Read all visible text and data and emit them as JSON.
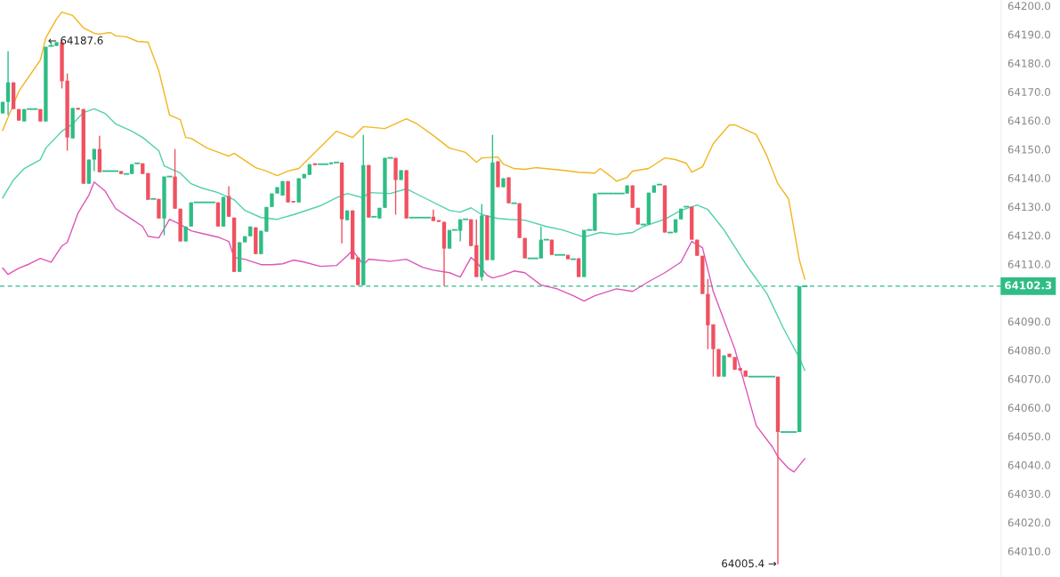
{
  "chart_data": {
    "type": "candlestick",
    "categories": [
      null,
      null,
      null,
      null,
      null,
      null,
      null,
      null,
      null,
      null,
      null,
      null,
      null,
      null,
      null,
      null,
      null,
      null,
      null,
      null,
      null,
      null,
      null,
      null,
      null,
      null,
      null,
      null,
      null,
      null,
      null,
      null,
      null,
      null,
      null,
      null,
      null,
      null,
      null,
      null,
      null,
      null,
      null,
      null,
      null,
      null,
      null,
      null,
      null,
      null,
      null,
      null,
      null,
      null,
      null,
      null,
      null,
      null,
      null,
      null,
      null,
      null,
      null,
      null,
      null,
      null,
      null,
      null,
      null,
      null,
      null,
      null,
      null,
      null,
      null,
      null,
      null,
      null,
      null,
      null,
      null,
      null,
      null,
      null,
      null,
      null,
      null,
      null,
      null,
      null,
      null,
      null,
      null,
      null,
      null,
      null,
      null,
      null,
      null,
      null,
      null,
      null,
      null,
      null,
      null,
      null,
      null,
      null,
      null,
      null,
      null,
      null,
      null,
      null,
      null,
      null,
      null,
      null,
      null,
      null,
      null,
      null,
      null,
      null,
      null,
      null,
      null,
      null,
      null,
      null,
      null,
      null,
      null,
      null,
      null,
      null,
      null,
      null,
      null,
      null,
      null,
      null,
      null,
      null,
      null,
      null,
      null,
      null,
      null,
      null,
      null,
      null,
      null,
      null,
      null,
      null,
      null,
      null,
      null,
      null,
      null,
      null,
      null,
      null,
      null,
      null,
      null,
      null,
      null,
      null,
      null,
      null,
      null,
      null,
      null,
      null,
      null,
      null,
      null,
      null,
      null,
      null,
      null,
      null,
      null,
      null
    ],
    "ohlc": [
      [
        64162.5,
        64166.5,
        64162.5,
        64166.5
      ],
      [
        64166.5,
        64184.2,
        64161.9,
        64173.3
      ],
      [
        64173.3,
        64173.3,
        64164.0,
        64164.0
      ],
      [
        64164.0,
        64164.0,
        64160.0,
        64160.0
      ],
      [
        64159.7,
        64164.0,
        64159.7,
        64164.0
      ],
      [
        64164.0,
        64164.0,
        64164.0,
        64164.0
      ],
      [
        64164.0,
        64164.0,
        64164.0,
        64164.0
      ],
      [
        64164.0,
        64164.0,
        64159.7,
        64159.7
      ],
      [
        64159.7,
        64185.7,
        64159.7,
        64185.7
      ],
      [
        64186.0,
        64187.6,
        64186.0,
        64186.0
      ],
      [
        64186.0,
        64187.3,
        64186.0,
        64187.3
      ],
      [
        64187.3,
        64187.3,
        64171.2,
        64173.7
      ],
      [
        64173.9,
        64176.4,
        64149.5,
        64154.1
      ],
      [
        64153.8,
        64164.4,
        64153.8,
        64164.4
      ],
      [
        64164.4,
        64164.4,
        64163.8,
        64163.8
      ],
      [
        64164.0,
        64164.0,
        64138.0,
        64138.0
      ],
      [
        64138.0,
        64146.4,
        64138.0,
        64146.4
      ],
      [
        64146.4,
        64150.1,
        64142.4,
        64150.1
      ],
      [
        64150.1,
        64154.7,
        64142.0,
        64142.0
      ],
      [
        64142.4,
        64142.4,
        64142.4,
        64142.4
      ],
      [
        64142.4,
        64142.4,
        64142.4,
        64142.4
      ],
      [
        64142.4,
        64142.4,
        64142.4,
        64142.4
      ],
      [
        64142.4,
        64142.4,
        64141.4,
        64141.4
      ],
      [
        64141.4,
        64141.4,
        64141.4,
        64141.4
      ],
      [
        64141.4,
        64144.8,
        64141.4,
        64144.8
      ],
      [
        64145.1,
        64145.1,
        64145.1,
        64145.1
      ],
      [
        64145.1,
        64145.1,
        64141.4,
        64141.4
      ],
      [
        64141.7,
        64141.7,
        64132.4,
        64132.4
      ],
      [
        64132.7,
        64132.7,
        64132.7,
        64132.7
      ],
      [
        64132.7,
        64132.7,
        64125.9,
        64125.9
      ],
      [
        64125.9,
        64140.5,
        64120.0,
        64140.5
      ],
      [
        64140.5,
        64140.5,
        64140.5,
        64140.5
      ],
      [
        64140.5,
        64150.1,
        64129.3,
        64129.3
      ],
      [
        64129.3,
        64129.3,
        64117.9,
        64117.9
      ],
      [
        64117.9,
        64123.1,
        64117.9,
        64123.1
      ],
      [
        64123.1,
        64131.5,
        64123.1,
        64131.5
      ],
      [
        64131.5,
        64131.5,
        64131.5,
        64131.5
      ],
      [
        64131.5,
        64131.5,
        64131.5,
        64131.5
      ],
      [
        64131.5,
        64131.5,
        64131.5,
        64131.5
      ],
      [
        64131.5,
        64131.5,
        64131.5,
        64131.5
      ],
      [
        64131.5,
        64131.5,
        64123.1,
        64123.1
      ],
      [
        64123.1,
        64133.4,
        64123.1,
        64133.4
      ],
      [
        64133.7,
        64137.1,
        64126.5,
        64126.5
      ],
      [
        64126.2,
        64126.2,
        64107.3,
        64107.3
      ],
      [
        64107.3,
        64117.6,
        64107.3,
        64117.6
      ],
      [
        64117.6,
        64119.7,
        64117.6,
        64119.7
      ],
      [
        64119.7,
        64123.1,
        64119.7,
        64123.1
      ],
      [
        64122.8,
        64122.8,
        64113.5,
        64113.5
      ],
      [
        64113.5,
        64121.6,
        64113.5,
        64121.6
      ],
      [
        64121.3,
        64129.9,
        64121.3,
        64129.9
      ],
      [
        64129.9,
        64134.6,
        64129.9,
        64134.6
      ],
      [
        64134.6,
        64136.8,
        64134.6,
        64136.8
      ],
      [
        64133.9,
        64138.9,
        64133.9,
        64138.9
      ],
      [
        64138.9,
        64138.9,
        64131.5,
        64131.5
      ],
      [
        64132.0,
        64132.0,
        64131.5,
        64131.5
      ],
      [
        64131.5,
        64139.9,
        64131.5,
        64139.9
      ],
      [
        64139.9,
        64141.4,
        64139.9,
        64141.4
      ],
      [
        64141.1,
        64144.8,
        64141.1,
        64144.8
      ],
      [
        64145.1,
        64145.1,
        64144.5,
        64144.5
      ],
      [
        64144.8,
        64144.8,
        64144.8,
        64144.8
      ],
      [
        64144.8,
        64144.8,
        64144.8,
        64144.8
      ],
      [
        64144.8,
        64145.4,
        64144.8,
        64145.4
      ],
      [
        64145.4,
        64145.4,
        64145.4,
        64145.4
      ],
      [
        64145.4,
        64145.4,
        64117.2,
        64125.6
      ],
      [
        64125.3,
        64128.7,
        64125.3,
        64128.7
      ],
      [
        64128.7,
        64128.7,
        64111.7,
        64111.7
      ],
      [
        64112.3,
        64112.3,
        64102.7,
        64102.7
      ],
      [
        64102.7,
        64155.0,
        64102.7,
        64144.5
      ],
      [
        64144.5,
        64144.5,
        64126.2,
        64126.2
      ],
      [
        64126.5,
        64126.5,
        64126.5,
        64126.5
      ],
      [
        64125.9,
        64129.6,
        64125.9,
        64129.6
      ],
      [
        64129.6,
        64147.0,
        64129.6,
        64147.0
      ],
      [
        64147.0,
        64147.0,
        64147.0,
        64147.0
      ],
      [
        64147.0,
        64147.0,
        64127.2,
        64139.3
      ],
      [
        64139.3,
        64142.7,
        64139.3,
        64142.7
      ],
      [
        64142.7,
        64142.7,
        64125.9,
        64125.9
      ],
      [
        64126.2,
        64126.2,
        64126.2,
        64126.2
      ],
      [
        64126.2,
        64126.2,
        64126.2,
        64126.2
      ],
      [
        64126.2,
        64126.2,
        64126.2,
        64126.2
      ],
      [
        64126.2,
        64126.2,
        64126.2,
        64126.2
      ],
      [
        64126.5,
        64129.0,
        64125.0,
        64125.0
      ],
      [
        64125.3,
        64125.3,
        64124.7,
        64124.7
      ],
      [
        64124.7,
        64124.7,
        64102.4,
        64115.4
      ],
      [
        64115.4,
        64121.9,
        64115.4,
        64121.9
      ],
      [
        64121.9,
        64121.9,
        64121.9,
        64121.9
      ],
      [
        64121.6,
        64125.6,
        64117.9,
        64125.6
      ],
      [
        64125.6,
        64125.6,
        64125.6,
        64125.6
      ],
      [
        64125.6,
        64125.6,
        64116.3,
        64116.3
      ],
      [
        64116.6,
        64125.6,
        64105.5,
        64105.5
      ],
      [
        64105.5,
        64130.9,
        64104.2,
        64126.9
      ],
      [
        64126.9,
        64126.9,
        64111.4,
        64111.4
      ],
      [
        64111.4,
        64155.0,
        64111.4,
        64145.4
      ],
      [
        64145.8,
        64145.8,
        64136.8,
        64136.8
      ],
      [
        64136.8,
        64139.9,
        64136.8,
        64139.9
      ],
      [
        64140.2,
        64140.2,
        64131.2,
        64131.2
      ],
      [
        64131.2,
        64131.2,
        64131.2,
        64131.2
      ],
      [
        64131.2,
        64131.2,
        64119.1,
        64119.1
      ],
      [
        64119.1,
        64119.1,
        64112.0,
        64112.0
      ],
      [
        64112.0,
        64112.0,
        64112.0,
        64112.0
      ],
      [
        64112.0,
        64112.0,
        64112.0,
        64112.0
      ],
      [
        64112.0,
        64123.1,
        64112.0,
        64118.5
      ],
      [
        64118.5,
        64118.5,
        64118.5,
        64118.5
      ],
      [
        64118.5,
        64118.5,
        64113.2,
        64113.2
      ],
      [
        64113.2,
        64113.2,
        64113.2,
        64113.2
      ],
      [
        64113.2,
        64113.2,
        64113.2,
        64113.2
      ],
      [
        64113.2,
        64113.2,
        64111.7,
        64111.7
      ],
      [
        64111.7,
        64111.7,
        64111.7,
        64111.7
      ],
      [
        64112.0,
        64112.0,
        64105.5,
        64105.5
      ],
      [
        64105.5,
        64121.9,
        64105.5,
        64121.9
      ],
      [
        64121.9,
        64121.9,
        64121.9,
        64121.9
      ],
      [
        64121.6,
        64134.6,
        64121.6,
        64134.6
      ],
      [
        64134.6,
        64134.6,
        64134.6,
        64134.6
      ],
      [
        64134.6,
        64134.6,
        64134.6,
        64134.6
      ],
      [
        64134.6,
        64134.6,
        64134.6,
        64134.6
      ],
      [
        64134.6,
        64134.6,
        64134.6,
        64134.6
      ],
      [
        64134.6,
        64134.6,
        64134.6,
        64134.6
      ],
      [
        64134.6,
        64137.4,
        64134.6,
        64137.4
      ],
      [
        64137.4,
        64137.4,
        64129.6,
        64129.6
      ],
      [
        64129.6,
        64129.6,
        64123.8,
        64123.8
      ],
      [
        64123.8,
        64123.8,
        64123.8,
        64123.8
      ],
      [
        64123.8,
        64134.9,
        64123.8,
        64134.9
      ],
      [
        64134.9,
        64137.4,
        64134.9,
        64137.4
      ],
      [
        64137.7,
        64137.7,
        64137.7,
        64137.7
      ],
      [
        64137.4,
        64137.4,
        64121.0,
        64121.0
      ],
      [
        64121.0,
        64121.0,
        64121.0,
        64121.0
      ],
      [
        64121.0,
        64125.6,
        64121.0,
        64125.6
      ],
      [
        64125.6,
        64129.3,
        64125.6,
        64129.3
      ],
      [
        64130.0,
        64130.0,
        64130.0,
        64130.0
      ],
      [
        64130.0,
        64130.0,
        64118.5,
        64118.5
      ],
      [
        64118.5,
        64118.5,
        64112.9,
        64112.9
      ],
      [
        64112.9,
        64112.9,
        64099.6,
        64099.6
      ],
      [
        64099.6,
        64104.8,
        64080.4,
        64088.7
      ],
      [
        64089.0,
        64089.0,
        64070.8,
        64080.4
      ],
      [
        64080.4,
        64080.4,
        64070.8,
        64070.8
      ],
      [
        64070.8,
        64078.2,
        64070.8,
        64078.2
      ],
      [
        64078.8,
        64078.8,
        64077.6,
        64077.6
      ],
      [
        64077.6,
        64077.6,
        64073.2,
        64073.2
      ],
      [
        64073.8,
        64073.8,
        64072.9,
        64072.9
      ],
      [
        64072.9,
        64072.9,
        64070.8,
        64070.8
      ],
      [
        64070.8,
        64070.8,
        64070.8,
        64070.8
      ],
      [
        64070.8,
        64070.8,
        64070.8,
        64070.8
      ],
      [
        64070.8,
        64070.8,
        64070.8,
        64070.8
      ],
      [
        64070.8,
        64070.8,
        64070.8,
        64070.8
      ],
      [
        64070.8,
        64070.8,
        64070.8,
        64070.8
      ],
      [
        64070.8,
        64070.8,
        64005.4,
        64051.5
      ],
      [
        64051.5,
        64051.5,
        64051.5,
        64051.5
      ],
      [
        64051.5,
        64051.5,
        64051.5,
        64051.5
      ],
      [
        64051.5,
        64051.5,
        64051.5,
        64051.5
      ],
      [
        64051.5,
        64102.3,
        64051.5,
        64102.3
      ],
      [
        64102.3,
        64102.3,
        64102.3,
        64102.3
      ],
      null,
      null,
      null,
      null,
      null,
      null,
      null,
      null,
      null,
      null,
      null,
      null,
      null,
      null,
      null,
      null,
      null,
      null,
      null,
      null,
      null,
      null,
      null,
      null,
      null,
      null,
      null,
      null,
      null,
      null,
      null,
      null,
      null,
      null,
      null,
      null
    ],
    "colors": [
      "#2ebd85",
      "#2ebd85",
      "#ef5160",
      "#ef5160",
      "#2ebd85",
      "#2ebd85",
      "#2ebd85",
      "#ef5160",
      "#2ebd85",
      "#2ebd85",
      "#2ebd85",
      "#ef5160",
      "#ef5160",
      "#2ebd85",
      "#ef5160",
      "#ef5160",
      "#2ebd85",
      "#2ebd85",
      "#ef5160",
      "#2ebd85",
      "#2ebd85",
      "#2ebd85",
      "#ef5160",
      "#2ebd85",
      "#2ebd85",
      "#2ebd85",
      "#ef5160",
      "#ef5160",
      "#2ebd85",
      "#ef5160",
      "#2ebd85",
      "#2ebd85",
      "#ef5160",
      "#ef5160",
      "#2ebd85",
      "#2ebd85",
      "#2ebd85",
      "#2ebd85",
      "#2ebd85",
      "#2ebd85",
      "#ef5160",
      "#2ebd85",
      "#ef5160",
      "#ef5160",
      "#2ebd85",
      "#2ebd85",
      "#2ebd85",
      "#ef5160",
      "#2ebd85",
      "#2ebd85",
      "#2ebd85",
      "#2ebd85",
      "#2ebd85",
      "#ef5160",
      "#ef5160",
      "#2ebd85",
      "#2ebd85",
      "#2ebd85",
      "#ef5160",
      "#2ebd85",
      "#2ebd85",
      "#2ebd85",
      "#2ebd85",
      "#ef5160",
      "#2ebd85",
      "#ef5160",
      "#ef5160",
      "#2ebd85",
      "#ef5160",
      "#2ebd85",
      "#2ebd85",
      "#2ebd85",
      "#2ebd85",
      "#ef5160",
      "#2ebd85",
      "#ef5160",
      "#2ebd85",
      "#2ebd85",
      "#2ebd85",
      "#2ebd85",
      "#ef5160",
      "#ef5160",
      "#ef5160",
      "#2ebd85",
      "#2ebd85",
      "#2ebd85",
      "#2ebd85",
      "#ef5160",
      "#ef5160",
      "#2ebd85",
      "#ef5160",
      "#2ebd85",
      "#ef5160",
      "#2ebd85",
      "#ef5160",
      "#2ebd85",
      "#ef5160",
      "#ef5160",
      "#2ebd85",
      "#2ebd85",
      "#2ebd85",
      "#2ebd85",
      "#ef5160",
      "#2ebd85",
      "#2ebd85",
      "#ef5160",
      "#2ebd85",
      "#ef5160",
      "#2ebd85",
      "#2ebd85",
      "#2ebd85",
      "#2ebd85",
      "#2ebd85",
      "#2ebd85",
      "#2ebd85",
      "#2ebd85",
      "#2ebd85",
      "#ef5160",
      "#ef5160",
      "#2ebd85",
      "#2ebd85",
      "#2ebd85",
      "#2ebd85",
      "#ef5160",
      "#2ebd85",
      "#2ebd85",
      "#2ebd85",
      "#2ebd85",
      "#ef5160",
      "#ef5160",
      "#ef5160",
      "#ef5160",
      "#ef5160",
      "#ef5160",
      "#2ebd85",
      "#ef5160",
      "#ef5160",
      "#ef5160",
      "#ef5160",
      "#2ebd85",
      "#2ebd85",
      "#2ebd85",
      "#2ebd85",
      "#2ebd85",
      "#ef5160",
      "#2ebd85",
      "#2ebd85",
      "#2ebd85",
      "#2ebd85",
      "#2ebd85",
      null,
      null,
      null,
      null,
      null,
      null,
      null,
      null,
      null,
      null,
      null,
      null,
      null,
      null,
      null,
      null,
      null,
      null,
      null,
      null,
      null,
      null,
      null,
      null,
      null,
      null,
      null,
      null,
      null,
      null,
      null,
      null,
      null,
      null,
      null,
      null
    ],
    "series": [
      {
        "type": "line",
        "color": "#f2b51f",
        "values": [
          64156.6,
          null,
          null,
          64170.2,
          null,
          null,
          null,
          64181.1,
          64188.8,
          null,
          64195.4,
          64197.8,
          null,
          64196.6,
          null,
          64192.3,
          null,
          64190.4,
          64190.1,
          null,
          64190.7,
          64189.5,
          null,
          64189.2,
          null,
          64187.6,
          null,
          64187.3,
          null,
          64177.4,
          null,
          64161.9,
          null,
          64160.3,
          64154.1,
          64153.8,
          null,
          null,
          64150.4,
          null,
          null,
          null,
          64147.6,
          64148.6,
          null,
          null,
          null,
          64143.6,
          null,
          64142.4,
          null,
          64140.8,
          null,
          64142.4,
          null,
          64143.3,
          null,
          null,
          64148.9,
          null,
          null,
          null,
          64156.3,
          null,
          null,
          64154.1,
          null,
          64157.9,
          null,
          null,
          null,
          64157.2,
          null,
          null,
          null,
          64160.6,
          null,
          64158.8,
          null,
          null,
          64154.8,
          null,
          null,
          64150.4,
          null,
          null,
          64148.9,
          null,
          64145.5,
          64147.0,
          null,
          null,
          64147.3,
          64144.8,
          null,
          64143.3,
          null,
          64143.0,
          null,
          64143.6,
          null,
          null,
          null,
          null,
          64142.7,
          null,
          null,
          64142.0,
          null,
          null,
          64141.7,
          64143.3,
          null,
          64140.5,
          64138.9,
          null,
          64140.2,
          64142.4,
          null,
          null,
          64143.3,
          null,
          64145.8,
          64147.0,
          null,
          64146.4,
          null,
          64145.1,
          64142.0,
          null,
          64143.9,
          null,
          64152.0,
          null,
          null,
          64158.5,
          64158.5,
          null,
          null,
          null,
          64155.1,
          null,
          64147.6,
          null,
          64138.0,
          null,
          64132.7,
          null,
          64111.4,
          64104.8,
          null,
          null,
          null,
          null,
          null,
          null,
          null,
          null,
          null,
          null,
          null,
          null,
          null,
          null,
          null,
          null,
          null,
          null,
          null,
          null,
          null,
          null,
          null,
          null,
          null,
          null,
          null,
          null,
          null,
          null,
          null,
          null,
          null,
          null,
          null,
          null
        ]
      },
      {
        "type": "line",
        "color": "#4fd1ad",
        "values": [
          64133.1,
          null,
          64139.3,
          null,
          64143.3,
          null,
          null,
          64146.4,
          64150.4,
          null,
          null,
          64156.3,
          null,
          64158.8,
          null,
          64162.8,
          null,
          64164.1,
          null,
          64162.5,
          null,
          64158.8,
          null,
          null,
          64156.3,
          null,
          64154.1,
          null,
          null,
          64149.5,
          64144.2,
          null,
          null,
          64141.7,
          null,
          64138.0,
          null,
          64136.5,
          null,
          null,
          64134.9,
          null,
          null,
          64132.4,
          null,
          64128.7,
          null,
          null,
          64126.2,
          null,
          null,
          64125.6,
          null,
          null,
          64127.2,
          null,
          null,
          null,
          null,
          64130.3,
          null,
          null,
          64133.1,
          null,
          64134.6,
          null,
          null,
          64133.1,
          64134.9,
          null,
          null,
          null,
          64134.6,
          null,
          null,
          64136.2,
          null,
          null,
          64133.4,
          null,
          null,
          null,
          null,
          64128.7,
          null,
          64128.1,
          null,
          64129.6,
          null,
          64127.2,
          null,
          null,
          64125.9,
          null,
          64125.6,
          null,
          null,
          64125.3,
          null,
          null,
          null,
          64123.1,
          null,
          null,
          64121.9,
          null,
          null,
          null,
          64119.4,
          null,
          null,
          64121.0,
          null,
          null,
          64120.3,
          null,
          null,
          64121.0,
          null,
          64123.1,
          null,
          null,
          null,
          64125.6,
          null,
          null,
          64128.7,
          null,
          null,
          64130.6,
          null,
          64129.0,
          null,
          null,
          64121.9,
          null,
          null,
          null,
          64110.1,
          null,
          null,
          null,
          64099.6,
          null,
          null,
          64087.8,
          null,
          null,
          64077.3,
          64073.0,
          null,
          null,
          null,
          null,
          null,
          null,
          null,
          null,
          null,
          null,
          null,
          null,
          null,
          null,
          null,
          null,
          null,
          null,
          null,
          null,
          null,
          null,
          null,
          null,
          null,
          null,
          null,
          null,
          null,
          null,
          null,
          null,
          null,
          null,
          null,
          null
        ]
      },
      {
        "type": "line",
        "color": "#dc55b8",
        "values": [
          64108.6,
          64106.4,
          null,
          64108.6,
          null,
          64110.1,
          null,
          64112.0,
          null,
          64110.7,
          null,
          64116.3,
          64117.6,
          null,
          64127.8,
          null,
          64134.0,
          64138.6,
          null,
          64135.5,
          null,
          64129.3,
          null,
          null,
          64125.6,
          null,
          64123.1,
          64119.7,
          null,
          64119.1,
          null,
          64125.6,
          null,
          64123.8,
          null,
          64121.6,
          null,
          64120.7,
          null,
          null,
          64119.4,
          null,
          64117.9,
          64112.3,
          null,
          64111.7,
          null,
          null,
          64109.8,
          null,
          64109.8,
          null,
          64110.1,
          null,
          64111.4,
          null,
          64110.7,
          null,
          null,
          64109.2,
          null,
          null,
          64109.5,
          null,
          64112.9,
          64114.8,
          null,
          64109.8,
          64111.7,
          null,
          null,
          null,
          64111.0,
          null,
          null,
          64111.7,
          null,
          null,
          64108.9,
          null,
          64107.9,
          null,
          null,
          64107.0,
          null,
          64105.5,
          null,
          64112.3,
          64110.7,
          null,
          64106.1,
          64105.2,
          null,
          64106.1,
          null,
          64107.6,
          null,
          64107.0,
          null,
          null,
          64102.7,
          null,
          null,
          64101.4,
          null,
          null,
          64099.0,
          null,
          64097.1,
          null,
          64099.0,
          null,
          null,
          null,
          64101.4,
          null,
          null,
          64100.5,
          null,
          null,
          64103.9,
          null,
          null,
          64107.0,
          null,
          null,
          64110.7,
          null,
          64117.9,
          null,
          64115.7,
          null,
          64100.5,
          null,
          null,
          null,
          64080.4,
          null,
          null,
          null,
          64053.7,
          null,
          null,
          64046.3,
          64042.9,
          null,
          64038.8,
          64037.6,
          null,
          64042.2,
          null,
          null,
          null,
          null,
          null,
          null,
          null,
          null,
          null,
          null,
          null,
          null,
          null,
          null,
          null,
          null,
          null,
          null,
          null,
          null,
          null,
          null,
          null,
          null,
          null,
          null,
          null,
          null,
          null,
          null,
          null,
          null,
          null,
          null,
          null,
          null
        ]
      }
    ],
    "ylim": [
      64001,
      64202
    ],
    "yticks": [
      {
        "value": 64010,
        "label": "64010.0"
      },
      {
        "value": 64020,
        "label": "64020.0"
      },
      {
        "value": 64030,
        "label": "64030.0"
      },
      {
        "value": 64040,
        "label": "64040.0"
      },
      {
        "value": 64050,
        "label": "64050.0"
      },
      {
        "value": 64060,
        "label": "64060.0"
      },
      {
        "value": 64070,
        "label": "64070.0"
      },
      {
        "value": 64080,
        "label": "64080.0"
      },
      {
        "value": 64090,
        "label": "64090.0"
      },
      {
        "value": 64100,
        "label": null
      },
      {
        "value": 64110,
        "label": "64110.0"
      },
      {
        "value": 64120,
        "label": "64120.0"
      },
      {
        "value": 64130,
        "label": "64130.0"
      },
      {
        "value": 64140,
        "label": "64140.0"
      },
      {
        "value": 64150,
        "label": "64150.0"
      },
      {
        "value": 64160,
        "label": "64160.0"
      },
      {
        "value": 64170,
        "label": "64170.0"
      },
      {
        "value": 64180,
        "label": "64180.0"
      },
      {
        "value": 64190,
        "label": "64190.0"
      },
      {
        "value": 64200,
        "label": "64200.0"
      }
    ],
    "ref_lines": [
      {
        "axis": "y",
        "value": 64102.3,
        "label": "64102.3",
        "color": "#2ebd85",
        "line_style": "dashed"
      }
    ],
    "annotations": [
      "← 64187.6",
      "64005.4 →"
    ],
    "tick_labels": "y"
  }
}
